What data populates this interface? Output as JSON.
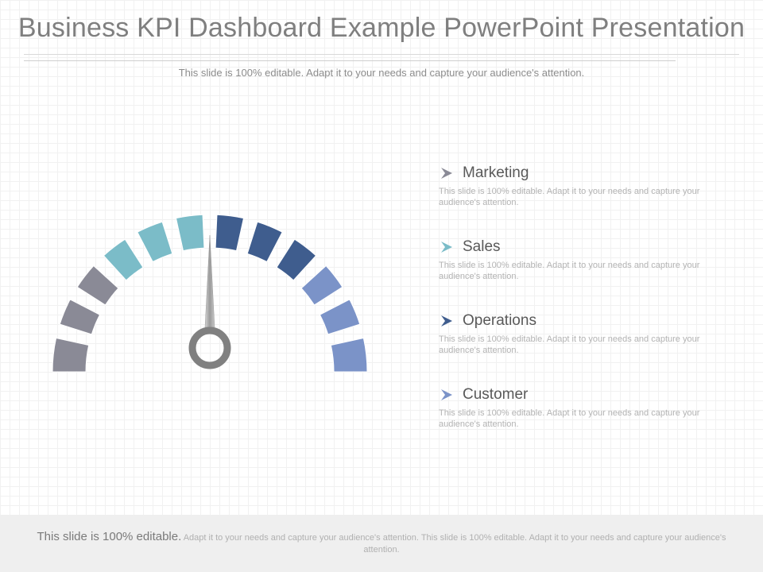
{
  "title": "Business KPI Dashboard Example PowerPoint Presentation",
  "subtitle": "This slide is 100% editable. Adapt it to your needs and capture your audience's attention.",
  "colors": {
    "segments": [
      "#8a8a96",
      "#8a8a96",
      "#8a8a96",
      "#7bbcc8",
      "#7bbcc8",
      "#7bbcc8",
      "#3f5d8e",
      "#3f5d8e",
      "#3f5d8e",
      "#7b93c8",
      "#7b93c8",
      "#7b93c8"
    ],
    "needle": "#a5a5a5",
    "hub": "#808080"
  },
  "kpis": [
    {
      "title": "Marketing",
      "desc": "This slide is 100% editable. Adapt it to your needs and capture your audience's attention.",
      "arrow_color": "#8a8a96",
      "icon": "chevron-right-icon"
    },
    {
      "title": "Sales",
      "desc": "This slide is 100% editable. Adapt it to your needs and capture your audience's attention.",
      "arrow_color": "#7bbcc8",
      "icon": "chevron-right-icon"
    },
    {
      "title": "Operations",
      "desc": "This slide is 100% editable. Adapt it to your needs and capture your audience's attention.",
      "arrow_color": "#3f5d8e",
      "icon": "chevron-right-icon"
    },
    {
      "title": "Customer",
      "desc": "This slide is 100% editable. Adapt it to your needs and capture your audience's attention.",
      "arrow_color": "#7b93c8",
      "icon": "chevron-right-icon"
    }
  ],
  "footer": {
    "lead": "This slide is 100% editable.",
    "body": "Adapt it to your needs and capture your audience's attention. This slide is 100% editable. Adapt it to your needs and capture your audience's attention."
  }
}
